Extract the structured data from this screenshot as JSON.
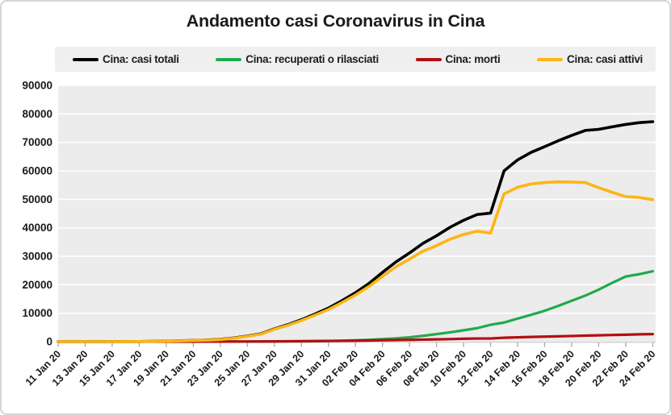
{
  "chart_data": {
    "type": "line",
    "title": "Andamento casi Coronavirus in Cina",
    "x": [
      "11 Jan 20",
      "12 Jan 20",
      "13 Jan 20",
      "14 Jan 20",
      "15 Jan 20",
      "16 Jan 20",
      "17 Jan 20",
      "18 Jan 20",
      "19 Jan 20",
      "20 Jan 20",
      "21 Jan 20",
      "22 Jan 20",
      "23 Jan 20",
      "24 Jan 20",
      "25 Jan 20",
      "26 Jan 20",
      "27 Jan 20",
      "28 Jan 20",
      "29 Jan 20",
      "30 Jan 20",
      "31 Jan 20",
      "01 Feb 20",
      "02 Feb 20",
      "03 Feb 20",
      "04 Feb 20",
      "05 Feb 20",
      "06 Feb 20",
      "07 Feb 20",
      "08 Feb 20",
      "09 Feb 20",
      "10 Feb 20",
      "11 Feb 20",
      "12 Feb 20",
      "13 Feb 20",
      "14 Feb 20",
      "15 Feb 20",
      "16 Feb 20",
      "17 Feb 20",
      "18 Feb 20",
      "19 Feb 20",
      "20 Feb 20",
      "21 Feb 20",
      "22 Feb 20",
      "23 Feb 20",
      "24 Feb 20"
    ],
    "x_tick_labels": [
      "11 Jan 20",
      "13 Jan 20",
      "15 Jan 20",
      "17 Jan 20",
      "19 Jan 20",
      "21 Jan 20",
      "23 Jan 20",
      "25 Jan 20",
      "27 Jan 20",
      "29 Jan 20",
      "31 Jan 20",
      "02 Feb 20",
      "04 Feb 20",
      "06 Feb 20",
      "08 Feb 20",
      "10 Feb 20",
      "12 Feb 20",
      "14 Feb 20",
      "16 Feb 20",
      "18 Feb 20",
      "20 Feb 20",
      "22 Feb 20",
      "24 Feb 20"
    ],
    "x_tick_every": 2,
    "series": [
      {
        "name": "Cina: casi totali",
        "color": "#010101",
        "line_width": 3.6,
        "values": [
          41,
          41,
          41,
          41,
          41,
          45,
          62,
          121,
          198,
          291,
          440,
          571,
          830,
          1287,
          1975,
          2744,
          4515,
          5974,
          7711,
          9692,
          11791,
          14380,
          17205,
          20438,
          24324,
          28018,
          31161,
          34546,
          37198,
          40171,
          42638,
          44653,
          45171,
          60005,
          63851,
          66492,
          68500,
          70548,
          72436,
          74185,
          74576,
          75465,
          76288,
          76936,
          77262
        ]
      },
      {
        "name": "Cina: recuperati o rilasciati",
        "color": "#21aa4d",
        "line_width": 3.2,
        "values": [
          6,
          6,
          6,
          7,
          12,
          15,
          19,
          24,
          25,
          25,
          28,
          30,
          34,
          38,
          49,
          51,
          60,
          103,
          124,
          171,
          243,
          328,
          475,
          632,
          892,
          1153,
          1540,
          2050,
          2649,
          3281,
          3996,
          4740,
          5911,
          6723,
          8096,
          9419,
          10844,
          12552,
          14376,
          16155,
          18264,
          20659,
          22888,
          23700,
          24734
        ]
      },
      {
        "name": "Cina: morti",
        "color": "#b30e12",
        "line_width": 3.2,
        "values": [
          1,
          1,
          1,
          1,
          2,
          2,
          2,
          3,
          3,
          6,
          9,
          17,
          25,
          41,
          56,
          80,
          106,
          132,
          170,
          213,
          259,
          304,
          361,
          425,
          490,
          563,
          637,
          722,
          811,
          908,
          1016,
          1113,
          1117,
          1369,
          1523,
          1665,
          1770,
          1868,
          2004,
          2118,
          2236,
          2345,
          2442,
          2592,
          2663
        ]
      },
      {
        "name": "Cina: casi attivi",
        "color": "#fdb515",
        "line_width": 3.6,
        "values": [
          34,
          34,
          34,
          33,
          27,
          28,
          41,
          94,
          170,
          260,
          403,
          524,
          771,
          1208,
          1870,
          2613,
          4349,
          5739,
          7417,
          9308,
          11289,
          13748,
          16369,
          19381,
          22942,
          26302,
          28984,
          31774,
          33738,
          35982,
          37626,
          38800,
          38143,
          51913,
          54232,
          55408,
          55886,
          56128,
          56056,
          55912,
          54076,
          52461,
          50958,
          50644,
          49865
        ]
      }
    ],
    "ylim": [
      0,
      90000
    ],
    "y_tick_step": 10000,
    "y_tick_labels": [
      "0",
      "10000",
      "20000",
      "30000",
      "40000",
      "50000",
      "60000",
      "70000",
      "80000",
      "90000"
    ],
    "grid": "horizontal white gridlines on light gray panel",
    "legend_position": "top",
    "x_label_rotation_deg": -45
  },
  "style": {
    "panel_bg": "#ececec",
    "gridline_color": "#ffffff",
    "axis_line_color": "#c9c9c9",
    "tick_color": "#a9a9a9",
    "text_color": "#1a1a1a",
    "legend_bg": "#efefef",
    "card_border": "#d6d6d6"
  }
}
